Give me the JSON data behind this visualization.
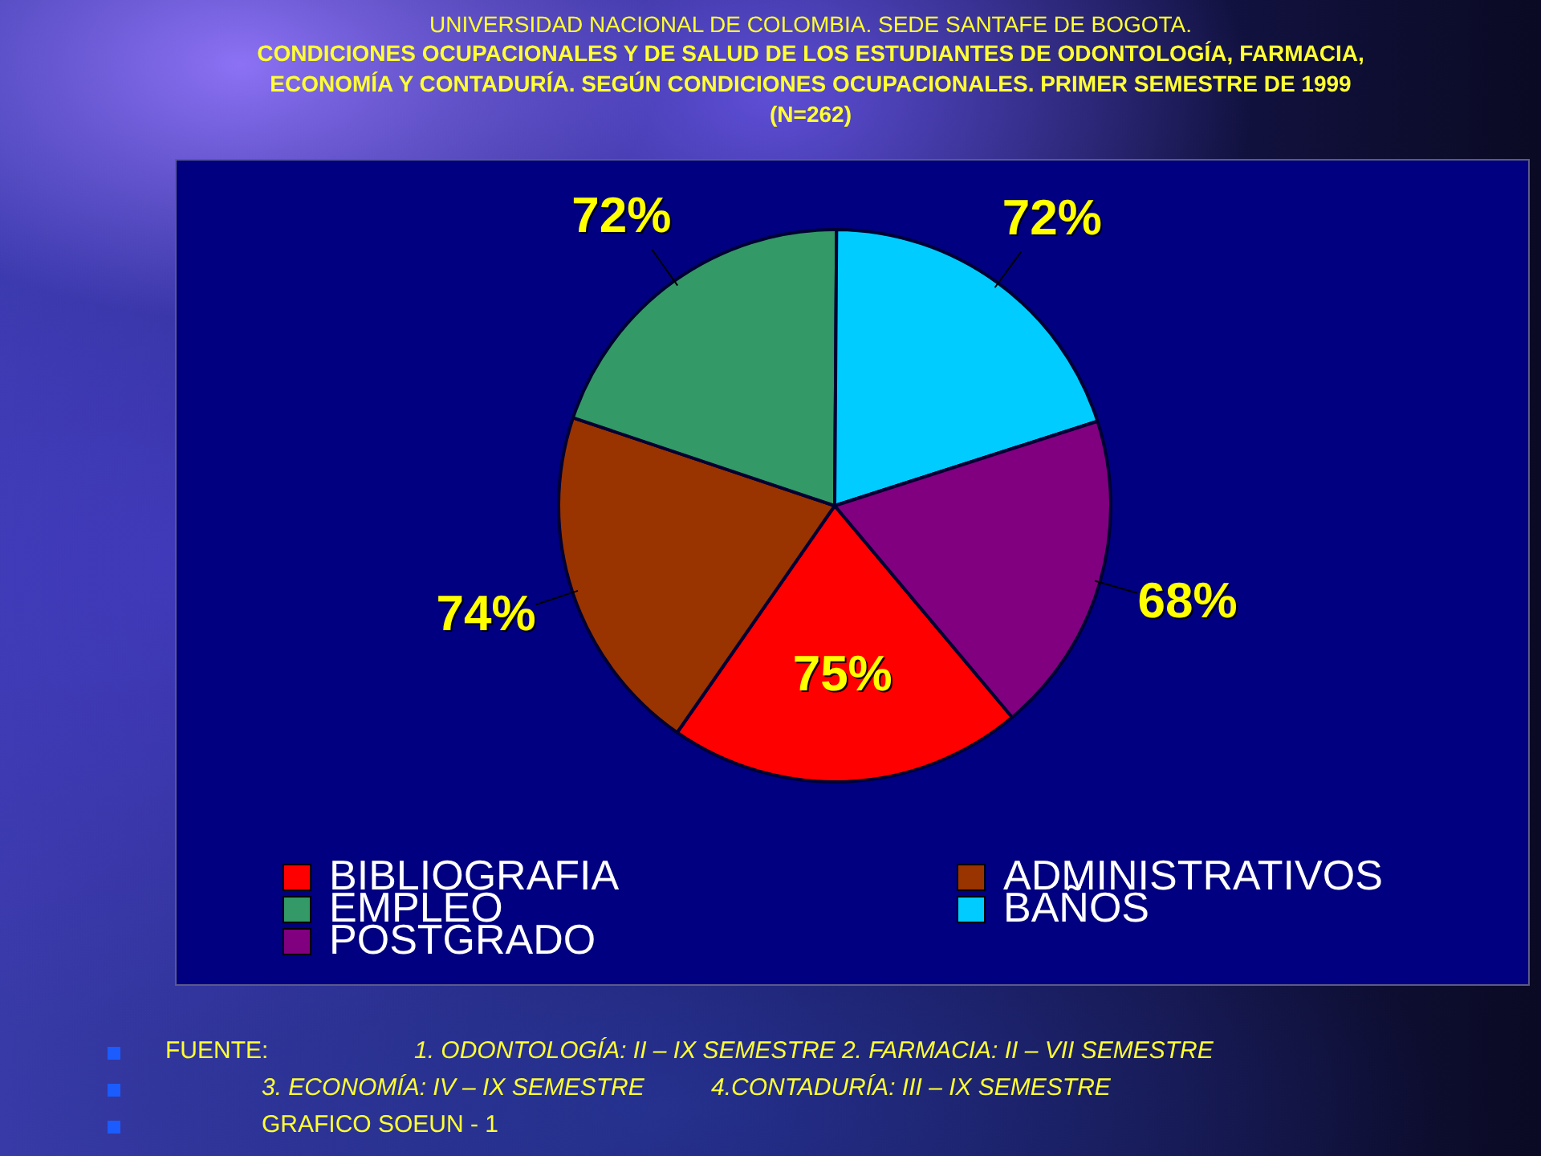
{
  "chart_data": {
    "type": "pie",
    "title": "UNIVERSIDAD NACIONAL DE COLOMBIA. SEDE SANTAFE DE BOGOTA.",
    "subtitle": "CONDICIONES OCUPACIONALES Y DE SALUD DE LOS ESTUDIANTES DE ODONTOLOGÍA, FARMACIA, ECONOMÍA Y CONTADURÍA. SEGÚN CONDICIONES OCUPACIONALES. PRIMER SEMESTRE DE 1999\n(N=262)",
    "categories": [
      "BIBLIOGRAFIA",
      "ADMINISTRATIVOS",
      "EMPLEO",
      "BAÑOS",
      "POSTGRADO"
    ],
    "values": [
      75,
      74,
      72,
      72,
      68
    ],
    "value_labels": [
      "75%",
      "74%",
      "72%",
      "72%",
      "68%"
    ],
    "colors": [
      "#ff0000",
      "#993300",
      "#339966",
      "#00ccff",
      "#800080"
    ],
    "legend": "bottom",
    "annotations": [
      "FUENTE:",
      "1. ODONTOLOGÍA: II – IX SEMESTRE 2. FARMACIA: II – VII SEMESTRE",
      "3. ECONOMÍA: IV – IX SEMESTRE",
      "4.CONTADURÍA: III – IX SEMESTRE",
      "GRAFICO SOEUN - 1"
    ]
  }
}
